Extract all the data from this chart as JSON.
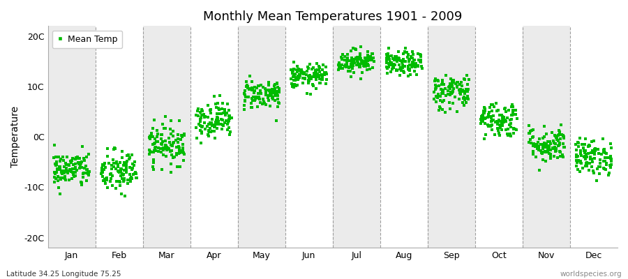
{
  "title": "Monthly Mean Temperatures 1901 - 2009",
  "ylabel": "Temperature",
  "xlabel_labels": [
    "Jan",
    "Feb",
    "Mar",
    "Apr",
    "May",
    "Jun",
    "Jul",
    "Aug",
    "Sep",
    "Oct",
    "Nov",
    "Dec"
  ],
  "ytick_labels": [
    "-20C",
    "-10C",
    "0C",
    "10C",
    "20C"
  ],
  "ytick_values": [
    -20,
    -10,
    0,
    10,
    20
  ],
  "ylim": [
    -22,
    22
  ],
  "background_color": "#ffffff",
  "plot_bg_color": "#ffffff",
  "band_color": "#ebebeb",
  "dot_color": "#00bb00",
  "dot_size": 6,
  "legend_label": "Mean Temp",
  "footer_left": "Latitude 34.25 Longitude 75.25",
  "footer_right": "worldspecies.org",
  "monthly_means": [
    -6.5,
    -7.0,
    -1.5,
    3.5,
    8.5,
    12.0,
    15.0,
    14.5,
    9.0,
    3.5,
    -1.5,
    -4.0
  ],
  "monthly_stds": [
    1.8,
    2.2,
    2.0,
    1.8,
    1.5,
    1.2,
    1.2,
    1.2,
    1.8,
    1.8,
    1.8,
    1.8
  ],
  "n_years": 109,
  "seed": 42
}
